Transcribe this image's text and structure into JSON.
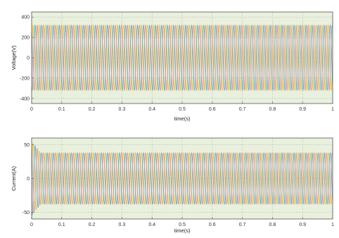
{
  "figure": {
    "corner_label": "",
    "colors": {
      "phase_a": "#f2c12e",
      "phase_b": "#4fb3d9",
      "phase_c": "#e58fa2",
      "background": "#e9f0dd",
      "grid": "#b8bcb0"
    }
  },
  "chart_data": [
    {
      "type": "line",
      "title": "",
      "xlabel": "time(s)",
      "ylabel": "Voltage(V)",
      "xlim": [
        0,
        1
      ],
      "ylim": [
        -450,
        450
      ],
      "xticks": [
        "0",
        "0.1",
        "0.2",
        "0.3",
        "0.4",
        "0.5",
        "0.6",
        "0.7",
        "0.8",
        "0.9",
        "1"
      ],
      "yticks": [
        400,
        200,
        0,
        -200,
        -400
      ],
      "ytick_labels": [
        "400",
        "200",
        "0",
        "-200",
        "-400"
      ],
      "grid": true,
      "frequency_hz": 50,
      "series": [
        {
          "amplitude": 320,
          "phase_deg": 0,
          "color": "#f2c12e"
        },
        {
          "amplitude": 320,
          "phase_deg": -120,
          "color": "#4fb3d9"
        },
        {
          "amplitude": 320,
          "phase_deg": 120,
          "color": "#e58fa2"
        }
      ]
    },
    {
      "type": "line",
      "title": "",
      "xlabel": "time(s)",
      "ylabel": "Current(A)",
      "xlim": [
        0,
        1
      ],
      "ylim": [
        -60,
        60
      ],
      "xticks": [
        "0",
        "0.1",
        "0.2",
        "0.3",
        "0.4",
        "0.5",
        "0.6",
        "0.7",
        "0.8",
        "0.9",
        "1"
      ],
      "yticks": [
        50,
        0,
        -50
      ],
      "ytick_labels": [
        "50",
        "0",
        "-50"
      ],
      "grid": true,
      "frequency_hz": 50,
      "startup_peak": 55,
      "series": [
        {
          "amplitude": 38,
          "phase_deg": 0,
          "color": "#f2c12e"
        },
        {
          "amplitude": 38,
          "phase_deg": -120,
          "color": "#4fb3d9"
        },
        {
          "amplitude": 38,
          "phase_deg": 120,
          "color": "#e58fa2"
        }
      ]
    }
  ]
}
